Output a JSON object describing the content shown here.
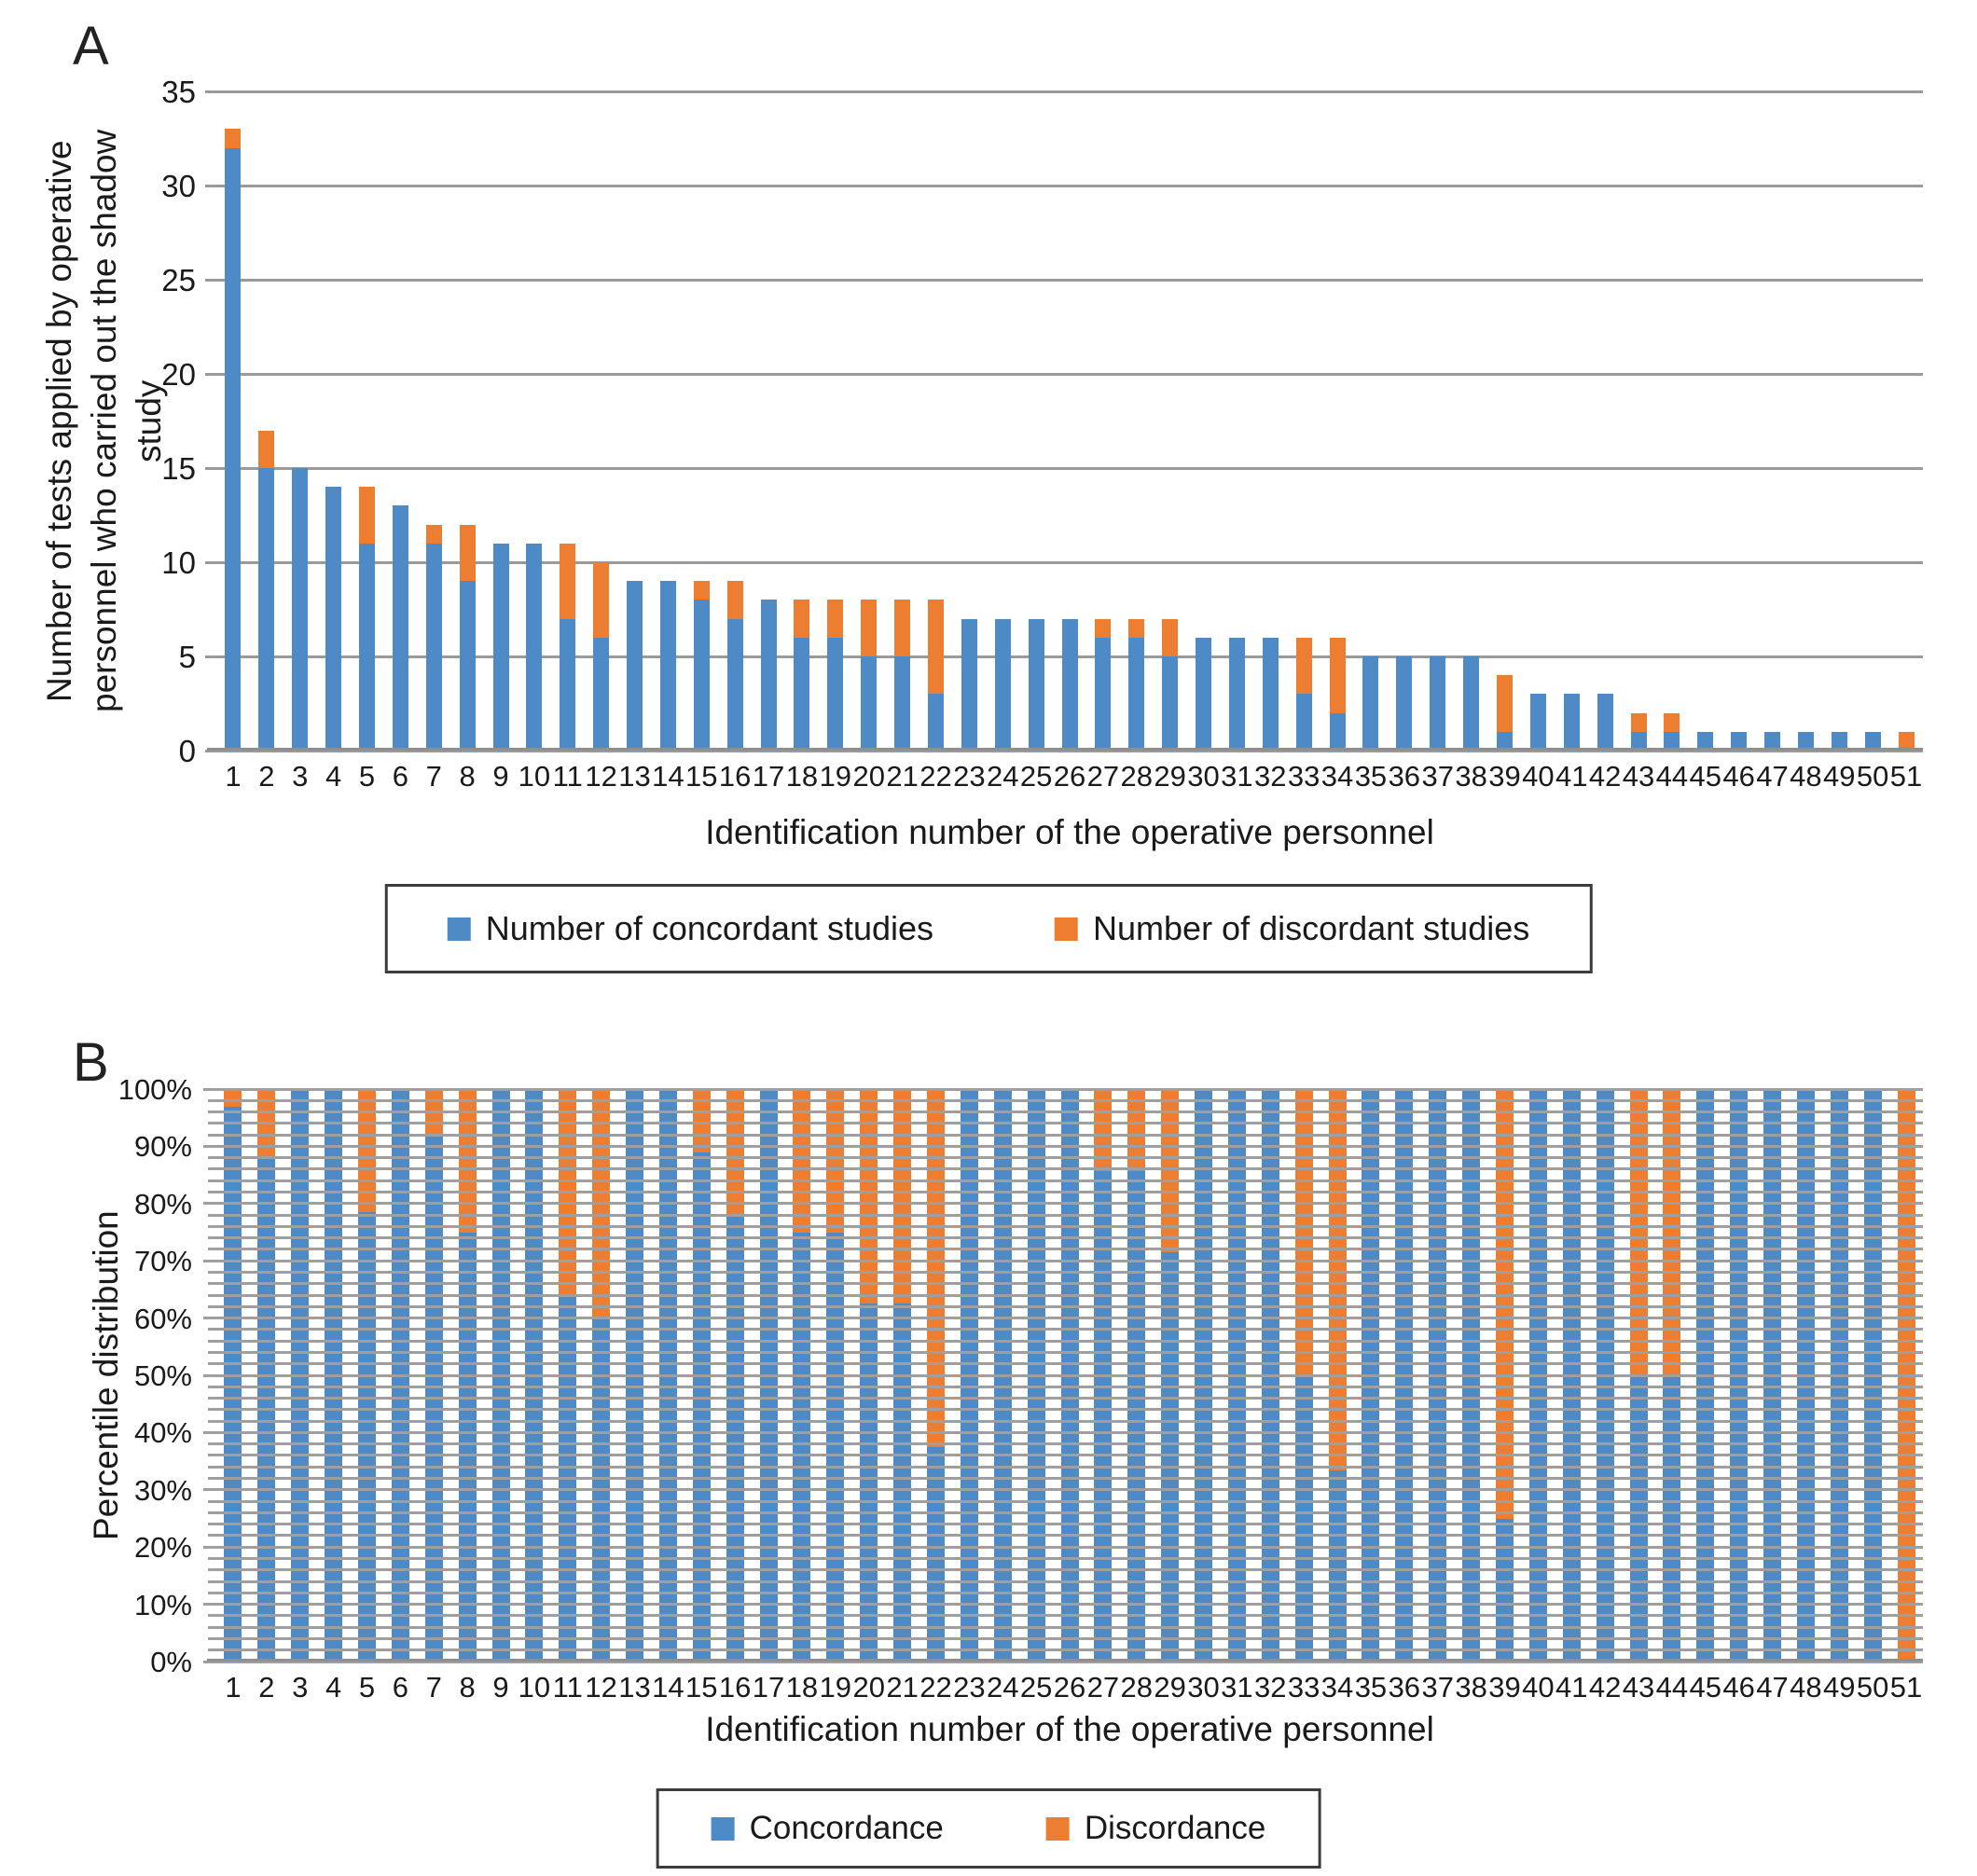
{
  "figure": {
    "panels": [
      {
        "letter": "A",
        "xlabel": "Identification number of the operative personnel",
        "ylabel": "Number of tests applied by operative\npersonnel who carried out the shadow study",
        "ytick_labels": [
          "0",
          "5",
          "10",
          "15",
          "20",
          "25",
          "30",
          "35"
        ],
        "legend": [
          "Number of concordant studies",
          "Number of discordant studies"
        ]
      },
      {
        "letter": "B",
        "xlabel": "Identification number of the operative personnel",
        "ylabel": "Percentile distribution",
        "ytick_labels": [
          "0%",
          "10%",
          "20%",
          "30%",
          "40%",
          "50%",
          "60%",
          "70%",
          "80%",
          "90%",
          "100%"
        ],
        "legend": [
          "Concordance",
          "Discordance"
        ]
      }
    ],
    "colors": {
      "concordant": "#4E8AC6",
      "discordant": "#ED7D31",
      "grid": "#9A9A9A",
      "axis": "#8F8F8F",
      "text": "#1A1A1A"
    }
  },
  "chart_data": [
    {
      "id": "A",
      "type": "bar",
      "stacked": true,
      "title": "",
      "xlabel": "Identification number of the operative personnel",
      "ylabel": "Number of tests applied by operative personnel who carried out the shadow study",
      "ylim": [
        0,
        35
      ],
      "ytick_step": 5,
      "grid": "horizontal major gridlines behind bars",
      "legend_position": "bottom boxed",
      "categories": [
        1,
        2,
        3,
        4,
        5,
        6,
        7,
        8,
        9,
        10,
        11,
        12,
        13,
        14,
        15,
        16,
        17,
        18,
        19,
        20,
        21,
        22,
        23,
        24,
        25,
        26,
        27,
        28,
        29,
        30,
        31,
        32,
        33,
        34,
        35,
        36,
        37,
        38,
        39,
        40,
        41,
        42,
        43,
        44,
        45,
        46,
        47,
        48,
        49,
        50,
        51
      ],
      "series": [
        {
          "name": "Number of concordant studies",
          "color": "#4E8AC6",
          "values": [
            32,
            15,
            15,
            14,
            11,
            13,
            11,
            9,
            11,
            11,
            7,
            6,
            9,
            9,
            8,
            7,
            8,
            6,
            6,
            5,
            5,
            3,
            7,
            7,
            7,
            7,
            6,
            6,
            5,
            6,
            6,
            6,
            3,
            2,
            5,
            5,
            5,
            5,
            1,
            3,
            3,
            3,
            1,
            1,
            1,
            1,
            1,
            1,
            1,
            1,
            0
          ]
        },
        {
          "name": "Number of discordant studies",
          "color": "#ED7D31",
          "values": [
            1,
            2,
            0,
            0,
            3,
            0,
            1,
            3,
            0,
            0,
            4,
            4,
            0,
            0,
            1,
            2,
            0,
            2,
            2,
            3,
            3,
            5,
            0,
            0,
            0,
            0,
            1,
            1,
            2,
            0,
            0,
            0,
            3,
            4,
            0,
            0,
            0,
            0,
            3,
            0,
            0,
            0,
            1,
            1,
            0,
            0,
            0,
            0,
            0,
            0,
            1
          ]
        }
      ]
    },
    {
      "id": "B",
      "type": "bar",
      "stacked": true,
      "normalized": "percent (100% stacked)",
      "title": "",
      "xlabel": "Identification number of the operative personnel",
      "ylabel": "Percentile distribution",
      "ylim": [
        "0%",
        "100%"
      ],
      "ytick_step": "10%",
      "minor_grid_step": "2%",
      "grid": "horizontal minor gridlines drawn over bars",
      "legend_position": "bottom boxed",
      "categories": [
        1,
        2,
        3,
        4,
        5,
        6,
        7,
        8,
        9,
        10,
        11,
        12,
        13,
        14,
        15,
        16,
        17,
        18,
        19,
        20,
        21,
        22,
        23,
        24,
        25,
        26,
        27,
        28,
        29,
        30,
        31,
        32,
        33,
        34,
        35,
        36,
        37,
        38,
        39,
        40,
        41,
        42,
        43,
        44,
        45,
        46,
        47,
        48,
        49,
        50,
        51
      ],
      "series": [
        {
          "name": "Concordance",
          "color": "#4E8AC6",
          "values": [
            32,
            15,
            15,
            14,
            11,
            13,
            11,
            9,
            11,
            11,
            7,
            6,
            9,
            9,
            8,
            7,
            8,
            6,
            6,
            5,
            5,
            3,
            7,
            7,
            7,
            7,
            6,
            6,
            5,
            6,
            6,
            6,
            3,
            2,
            5,
            5,
            5,
            5,
            1,
            3,
            3,
            3,
            1,
            1,
            1,
            1,
            1,
            1,
            1,
            1,
            0
          ]
        },
        {
          "name": "Discordance",
          "color": "#ED7D31",
          "values": [
            1,
            2,
            0,
            0,
            3,
            0,
            1,
            3,
            0,
            0,
            4,
            4,
            0,
            0,
            1,
            2,
            0,
            2,
            2,
            3,
            3,
            5,
            0,
            0,
            0,
            0,
            1,
            1,
            2,
            0,
            0,
            0,
            3,
            4,
            0,
            0,
            0,
            0,
            3,
            0,
            0,
            0,
            1,
            1,
            0,
            0,
            0,
            0,
            0,
            0,
            1
          ]
        }
      ],
      "concordance_percent": [
        97.0,
        88.2,
        100,
        100,
        78.6,
        100,
        91.7,
        75.0,
        100,
        100,
        63.6,
        60.0,
        100,
        100,
        88.9,
        77.8,
        100,
        75.0,
        75.0,
        62.5,
        62.5,
        37.5,
        100,
        100,
        100,
        100,
        85.7,
        85.7,
        71.4,
        100,
        100,
        100,
        50.0,
        33.3,
        100,
        100,
        100,
        100,
        25.0,
        100,
        100,
        100,
        50.0,
        50.0,
        100,
        100,
        100,
        100,
        100,
        100,
        0.0
      ]
    }
  ]
}
